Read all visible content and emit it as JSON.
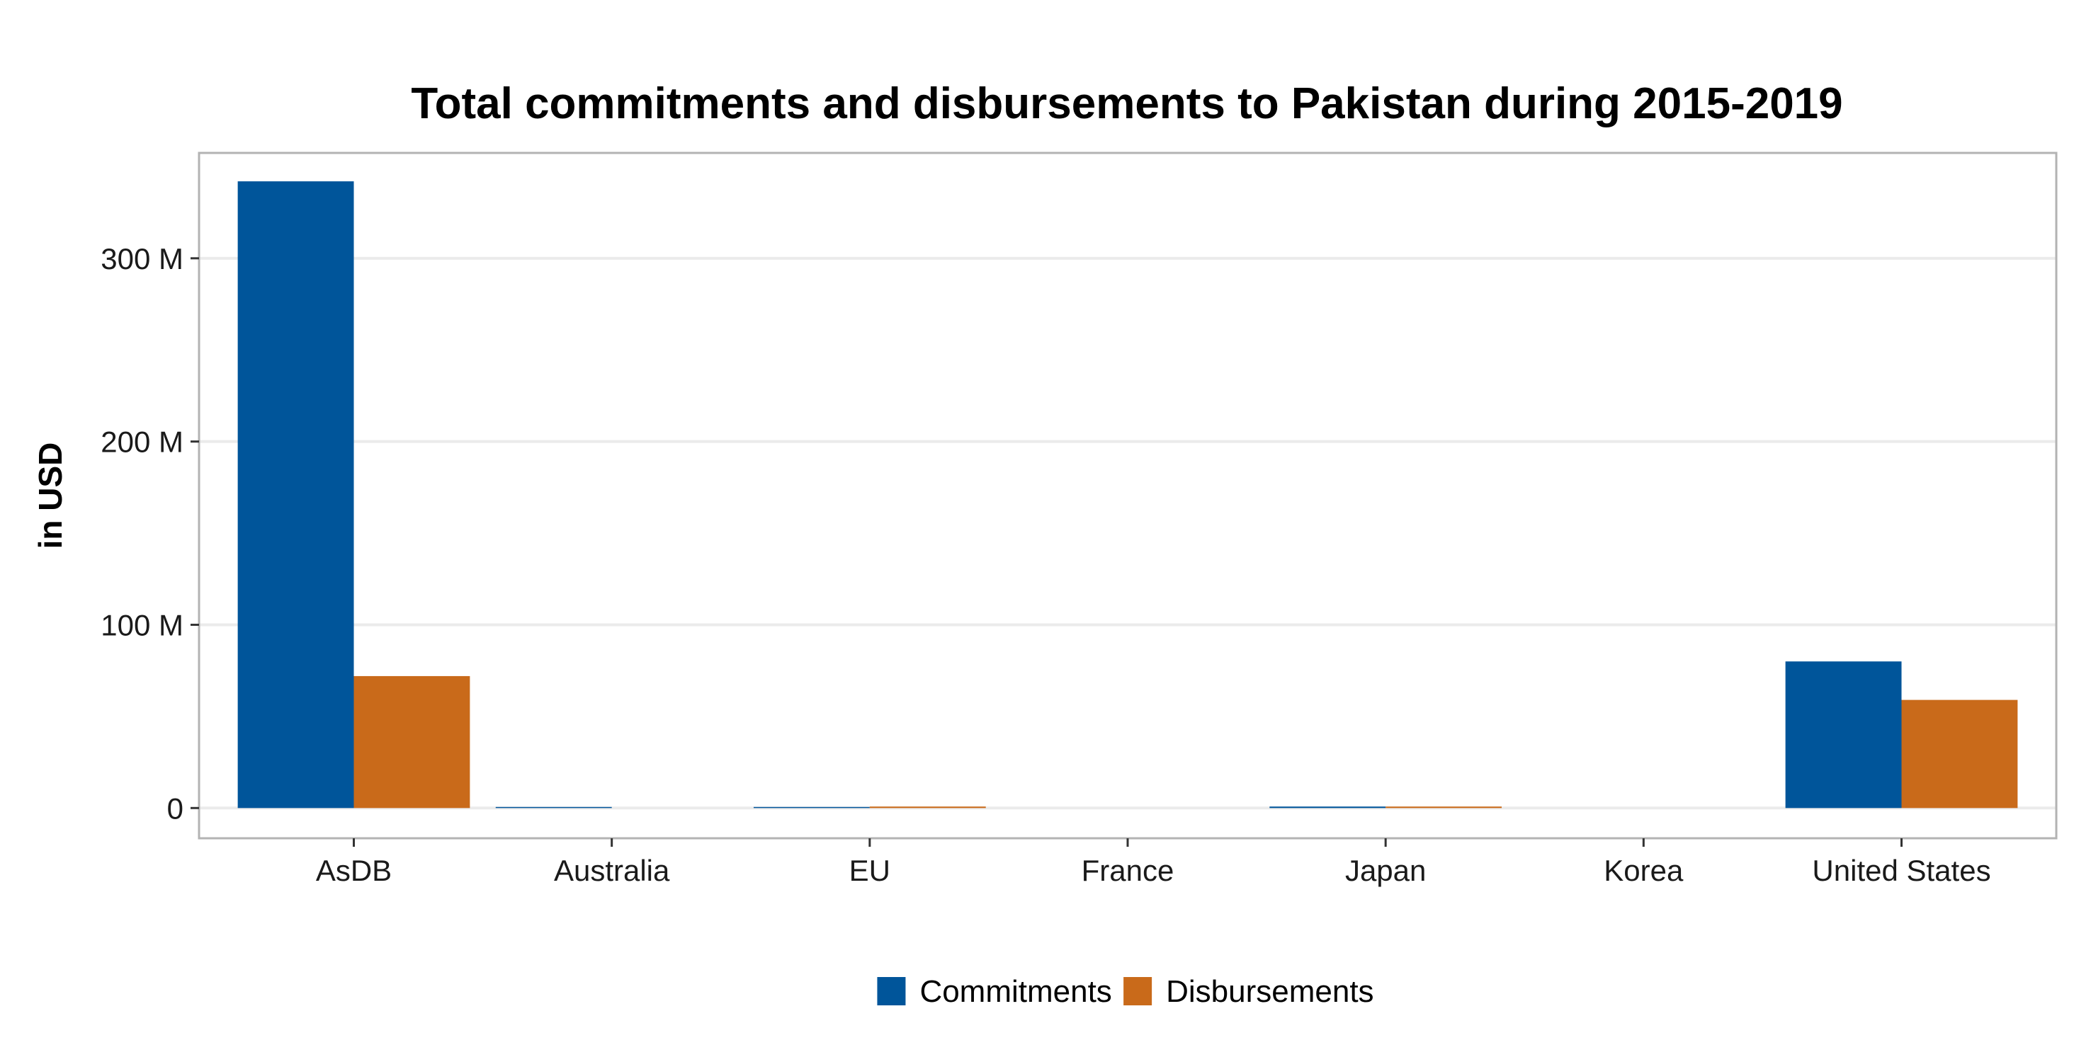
{
  "chart_data": {
    "type": "bar",
    "title": "Total commitments and disbursements to Pakistan during 2015-2019",
    "ylabel": "in USD",
    "xlabel": "",
    "categories": [
      "AsDB",
      "Australia",
      "EU",
      "France",
      "Japan",
      "Korea",
      "United States"
    ],
    "series": [
      {
        "name": "Commitments",
        "color": "#00559a",
        "values": [
          342,
          0.05,
          0.05,
          0,
          0.8,
          0,
          80
        ]
      },
      {
        "name": "Disbursements",
        "color": "#c96a1a",
        "values": [
          72,
          0,
          0.8,
          0,
          0.8,
          0,
          59
        ]
      }
    ],
    "ylim": [
      -16.5,
      357.5
    ],
    "yticks": [
      0,
      100,
      200,
      300
    ],
    "ytick_labels": [
      "0",
      "100 M",
      "200 M",
      "300 M"
    ],
    "grid": "horizontal",
    "legend_position": "bottom"
  }
}
